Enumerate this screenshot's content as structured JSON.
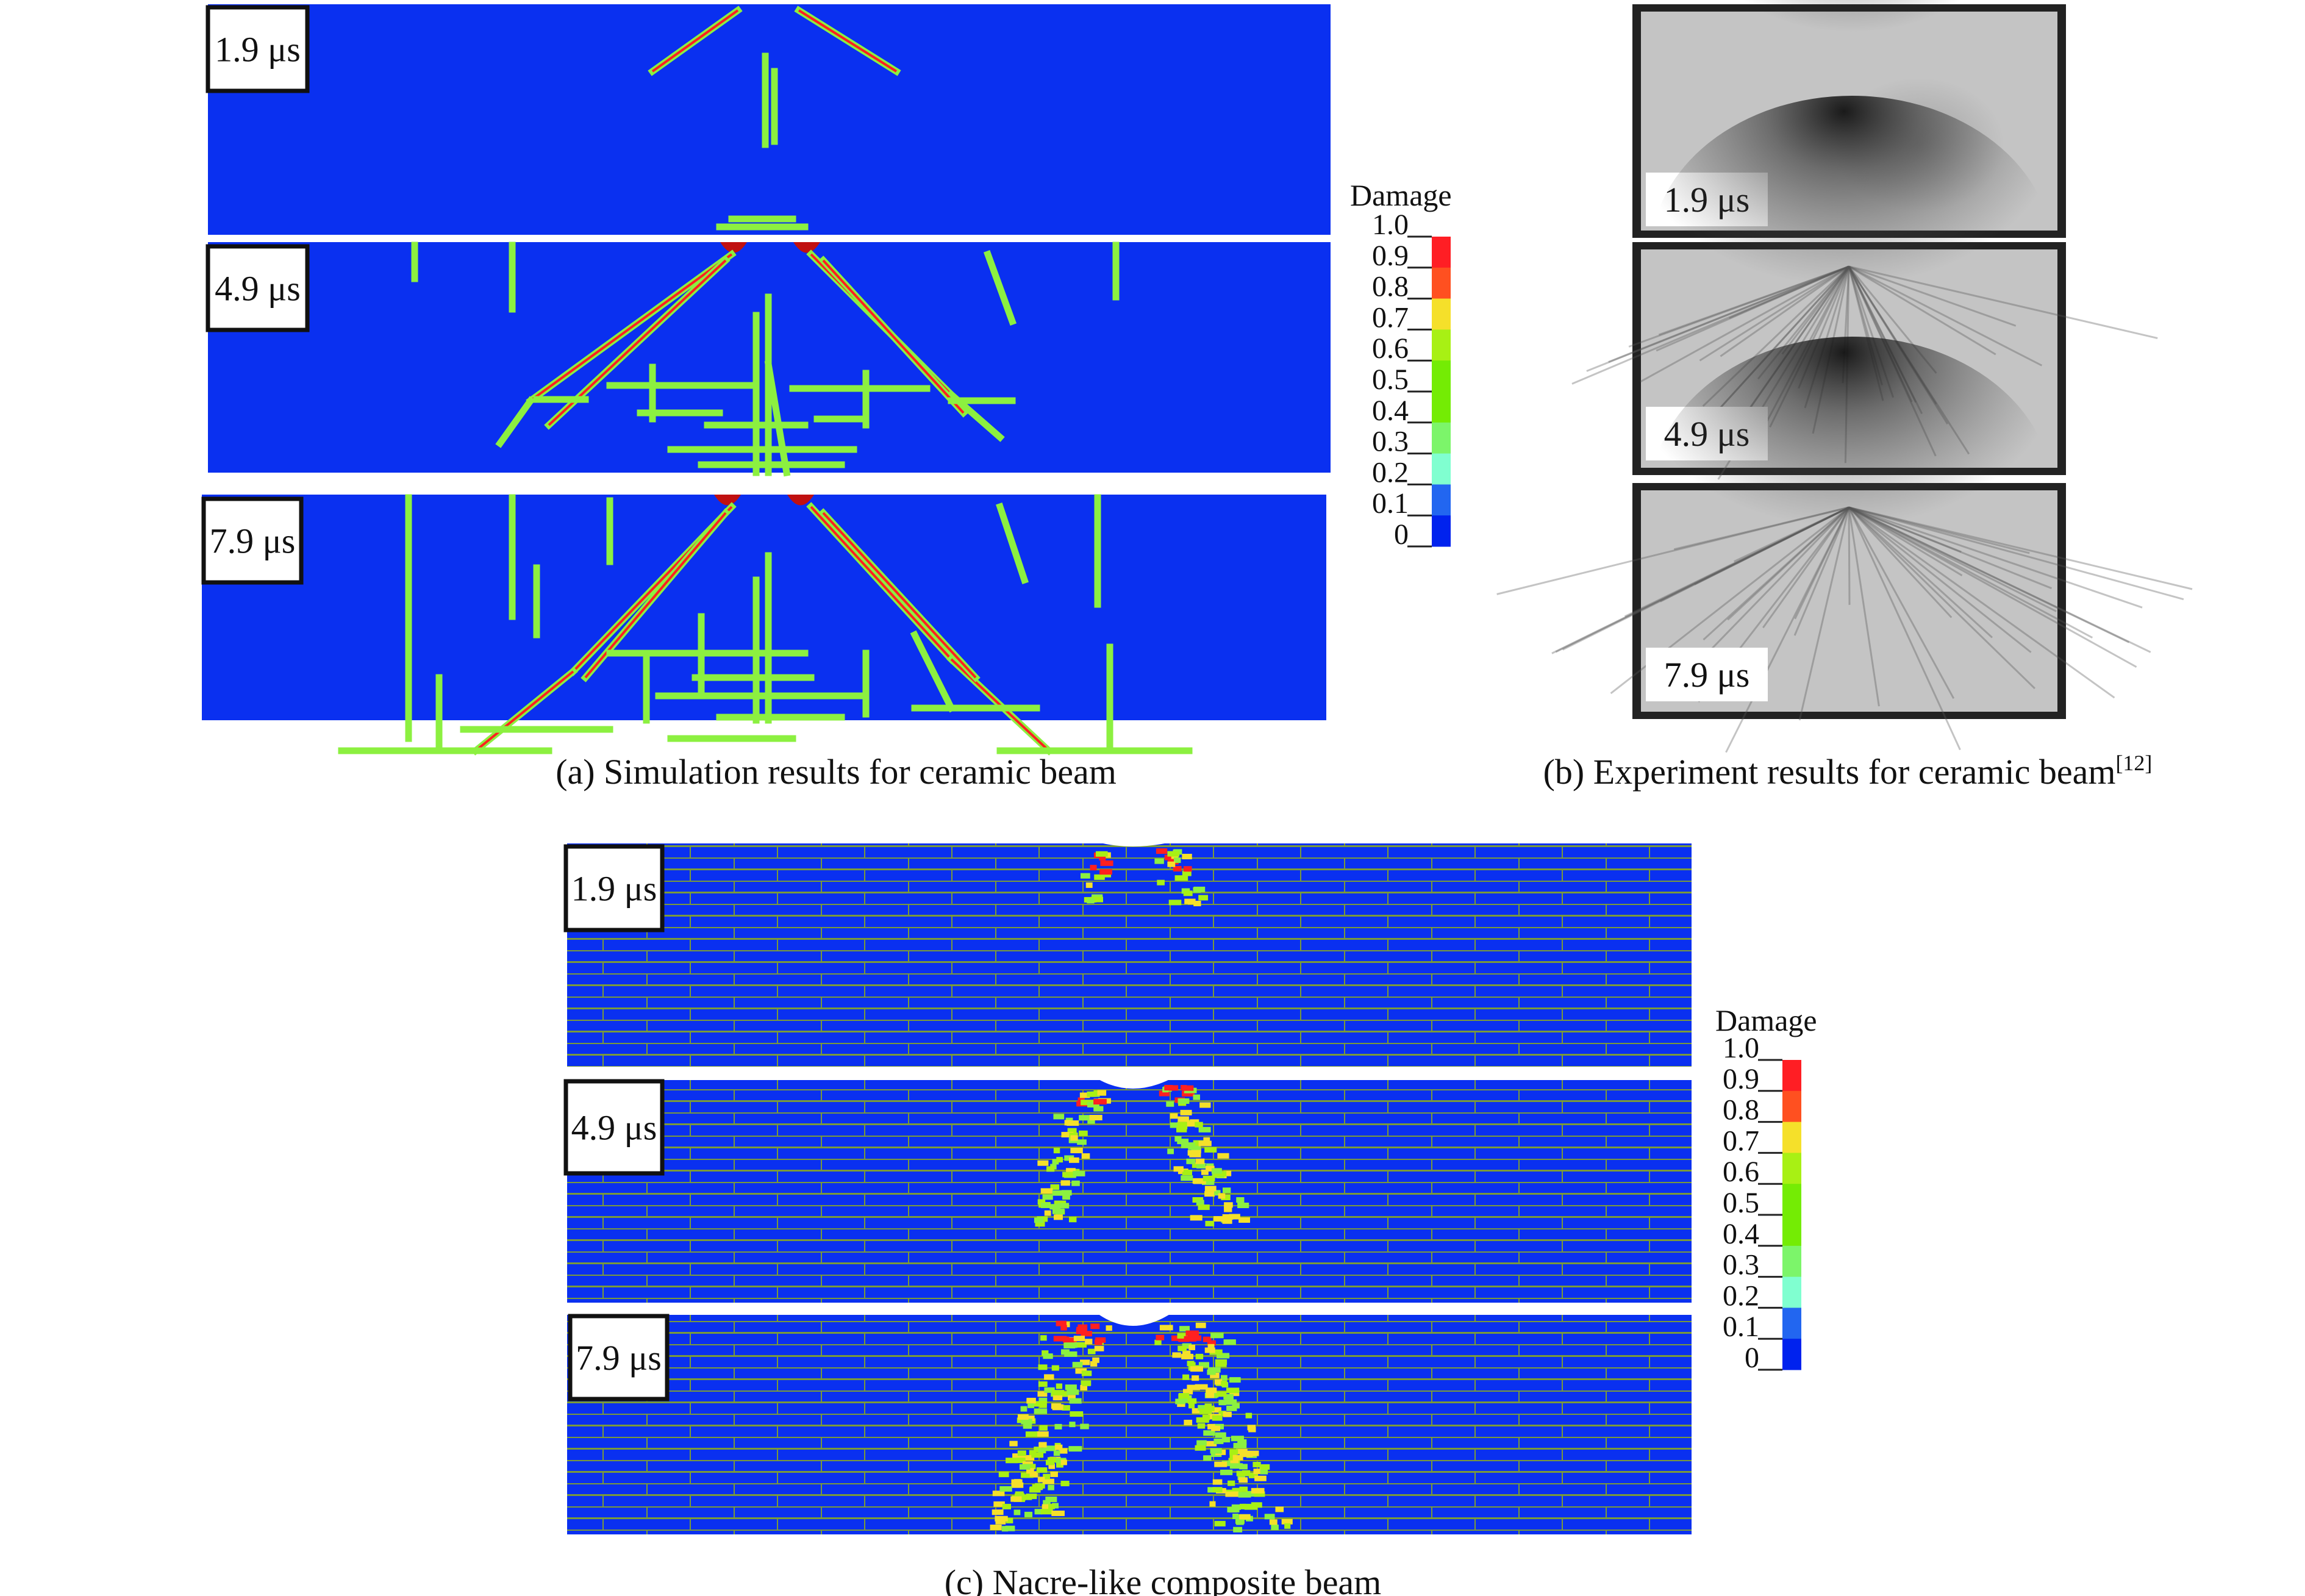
{
  "panels": {
    "a": {
      "caption": "(a) Simulation results for ceramic beam",
      "time_labels": [
        "1.9 μs",
        "4.9 μs",
        "7.9 μs"
      ]
    },
    "b": {
      "caption": "(b) Experiment results for ceramic beam",
      "citation": "[12]",
      "time_labels": [
        "1.9 μs",
        "4.9 μs",
        "7.9 μs"
      ]
    },
    "c": {
      "caption": "(c) Nacre-like composite beam",
      "time_labels": [
        "1.9 μs",
        "4.9 μs",
        "7.9 μs"
      ]
    }
  },
  "legend": {
    "title": "Damage",
    "ticks": [
      "1.0",
      "0.9",
      "0.8",
      "0.7",
      "0.6",
      "0.5",
      "0.4",
      "0.3",
      "0.2",
      "0.1",
      "0"
    ],
    "band_colors": [
      "#ff1e24",
      "#ff5020",
      "#f5e02a",
      "#a8f014",
      "#74ec04",
      "#74ec04",
      "#7cf56a",
      "#80ffd0",
      "#2266f0",
      "#0022ee"
    ]
  },
  "colors": {
    "undamaged": "#0a30f0",
    "crack": "#8cf040",
    "crack_core": "#ff2020",
    "interface": "#7a9a3a",
    "photo_bg": "#c4c4c4"
  }
}
